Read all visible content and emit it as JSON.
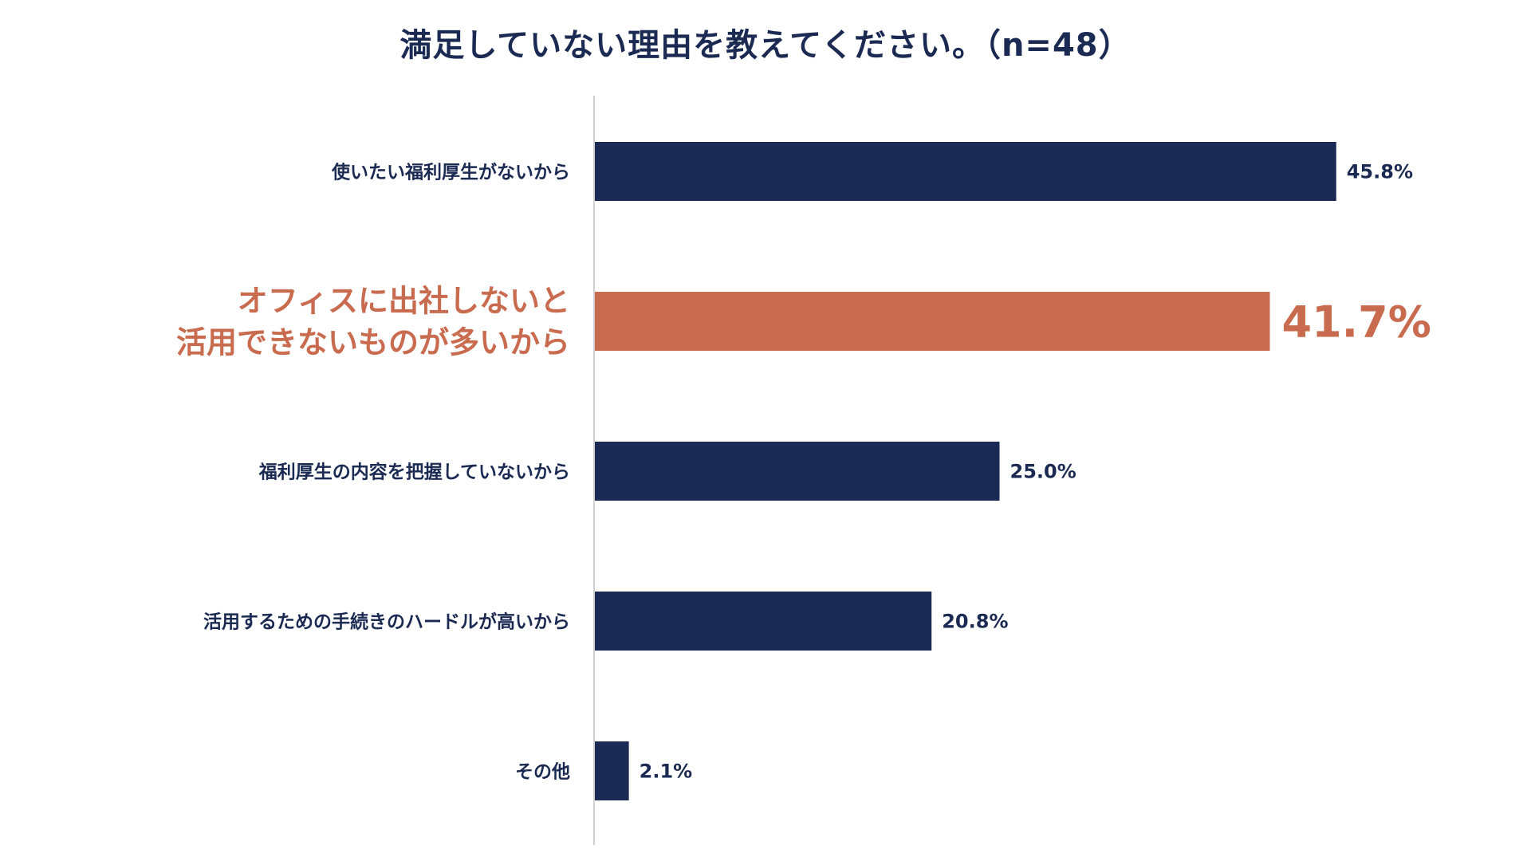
{
  "chart_data": {
    "type": "bar",
    "orientation": "horizontal",
    "title": "満足していない理由を教えてください。（n=48）",
    "unit": "%",
    "categories": [
      "使いたい福利厚生がないから",
      "オフィスに出社しないと\n活用できないものが多いから",
      "福利厚生の内容を把握していないから",
      "活用するための手続きのハードルが高いから",
      "その他"
    ],
    "values": [
      45.8,
      41.7,
      25.0,
      20.8,
      2.1
    ],
    "value_labels": [
      "45.8%",
      "41.7%",
      "25.0%",
      "20.8%",
      "2.1%"
    ],
    "highlight_index": 1,
    "xlim": [
      0,
      50
    ],
    "grid": false,
    "legend": "none"
  },
  "colors": {
    "bar": "#1b2a52",
    "highlight": "#c96b4f",
    "text": "#1b2a52",
    "axis": "#d0d0d0"
  }
}
